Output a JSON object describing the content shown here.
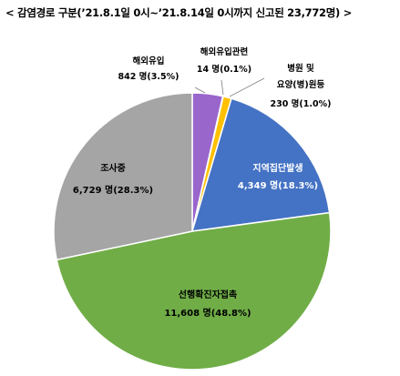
{
  "chart_data": {
    "type": "pie",
    "title": "< 감염경로 구분(’21.8.1일 0시~’21.8.14일 0시까지 신고된 23,772명) >",
    "total": 23772,
    "slices": [
      {
        "label": "해외유입",
        "value_text": "842 명(3.5%)",
        "value": 842,
        "percent": 3.5,
        "color": "#9966cc"
      },
      {
        "label": "해외유입관련",
        "value_text": "14 명(0.1%)",
        "value": 14,
        "percent": 0.1,
        "color": "#e0a020"
      },
      {
        "label": "병원 및 요양(병)원등",
        "label_line1": "병원 및",
        "label_line2": "요양(병)원등",
        "value_text": "230 명(1.0%)",
        "value": 230,
        "percent": 1.0,
        "color": "#ffc000"
      },
      {
        "label": "지역집단발생",
        "value_text": "4,349 명(18.3%)",
        "value": 4349,
        "percent": 18.3,
        "color": "#4472c4"
      },
      {
        "label": "선행확진자접촉",
        "value_text": "11,608 명(48.8%)",
        "value": 11608,
        "percent": 48.8,
        "color": "#70ad47"
      },
      {
        "label": "조사중",
        "value_text": "6,729 명(28.3%)",
        "value": 6729,
        "percent": 28.3,
        "color": "#a5a5a5"
      }
    ]
  }
}
